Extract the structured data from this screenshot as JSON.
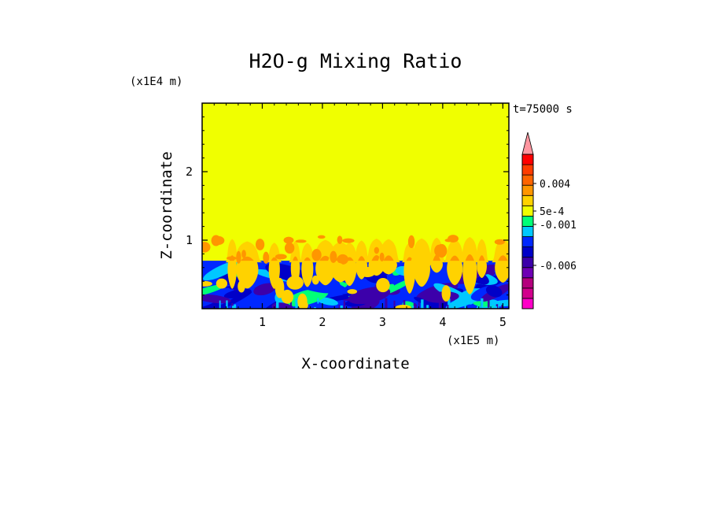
{
  "chart_data": {
    "type": "heatmap",
    "title": "H2O-g Mixing Ratio",
    "xlabel": "X-coordinate",
    "ylabel": "Z-coordinate",
    "x_scale_label": "(x1E5 m)",
    "y_scale_label": "(x1E4 m)",
    "time_label": "t=75000 s",
    "xlim": [
      0,
      5.1
    ],
    "ylim": [
      0,
      3.0
    ],
    "x_ticks": [
      1,
      2,
      3,
      4,
      5
    ],
    "y_ticks": [
      1,
      2
    ],
    "x_tick_labels": [
      "1",
      "2",
      "3",
      "4",
      "5"
    ],
    "y_tick_labels": [
      "1",
      "2"
    ],
    "boundary_layer_top": 0.7,
    "plume_top": 1.05,
    "background_color": "#f0ff00",
    "colorbar": {
      "levels": [
        {
          "color": "#ff00c8"
        },
        {
          "color": "#d2008c"
        },
        {
          "color": "#b4007d"
        },
        {
          "color": "#6e00b4"
        },
        {
          "color": "#3c00aa"
        },
        {
          "color": "#0000c8"
        },
        {
          "color": "#0028ff"
        },
        {
          "color": "#00c8ff"
        },
        {
          "color": "#00ff78"
        },
        {
          "color": "#f0ff00"
        },
        {
          "color": "#ffd200"
        },
        {
          "color": "#ff9600"
        },
        {
          "color": "#ff6400"
        },
        {
          "color": "#ff3c00"
        },
        {
          "color": "#ff0000"
        },
        {
          "color": "#ff96a0"
        }
      ],
      "tick_labels": [
        "0.004",
        "5e-4",
        "-0.001",
        "-0.006"
      ],
      "extend_top": true
    }
  }
}
